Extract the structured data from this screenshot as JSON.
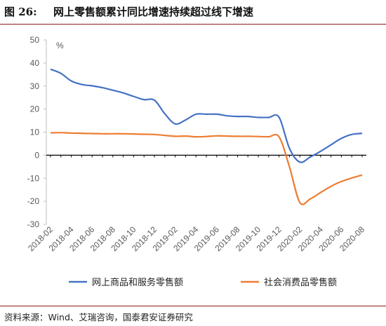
{
  "header": {
    "figure_no": "图 26:",
    "title": "网上零售额累计同比增速持续超过线下增速"
  },
  "footer": {
    "source": "资料来源：Wind、艾瑞咨询，国泰君安证券研究"
  },
  "chart_data": {
    "type": "line",
    "title": "网上零售额累计同比增速持续超过线下增速",
    "unit_label": "%",
    "ylim": [
      -30,
      50
    ],
    "y_ticks": [
      -30,
      -20,
      -10,
      0,
      10,
      20,
      30,
      40,
      50
    ],
    "grid": false,
    "legend_position": "bottom",
    "x_tick_labels": [
      "2018-02",
      "2018-04",
      "2018-06",
      "2018-08",
      "2018-10",
      "2018-12",
      "2019-02",
      "2019-04",
      "2019-06",
      "2019-08",
      "2019-10",
      "2019-12",
      "2020-02",
      "2020-04",
      "2020-06",
      "2020-08"
    ],
    "x": [
      "2018-02",
      "2018-03",
      "2018-04",
      "2018-05",
      "2018-06",
      "2018-07",
      "2018-08",
      "2018-09",
      "2018-10",
      "2018-11",
      "2018-12",
      "2019-01",
      "2019-02",
      "2019-03",
      "2019-04",
      "2019-05",
      "2019-06",
      "2019-07",
      "2019-08",
      "2019-09",
      "2019-10",
      "2019-11",
      "2019-12",
      "2020-01",
      "2020-02",
      "2020-03",
      "2020-04",
      "2020-05",
      "2020-06",
      "2020-07",
      "2020-08"
    ],
    "series": [
      {
        "name": "网上商品和服务零售额",
        "color": "#4472C4",
        "values": [
          37.3,
          35.5,
          32.2,
          30.7,
          30.1,
          29.3,
          28.2,
          27.0,
          25.5,
          24.1,
          23.9,
          18.0,
          13.6,
          15.3,
          17.8,
          17.8,
          17.8,
          17.1,
          16.8,
          16.8,
          16.4,
          16.4,
          16.5,
          3.0,
          -3.0,
          -0.8,
          1.7,
          4.5,
          7.3,
          9.0,
          9.5
        ]
      },
      {
        "name": "社会消费品零售额",
        "color": "#ED7D31",
        "values": [
          9.7,
          9.8,
          9.6,
          9.5,
          9.4,
          9.3,
          9.3,
          9.3,
          9.2,
          9.1,
          9.0,
          8.6,
          8.2,
          8.3,
          8.0,
          8.1,
          8.4,
          8.3,
          8.2,
          8.2,
          8.1,
          8.0,
          8.0,
          -5.0,
          -20.5,
          -19.0,
          -16.2,
          -13.5,
          -11.4,
          -9.9,
          -8.6
        ]
      }
    ]
  }
}
